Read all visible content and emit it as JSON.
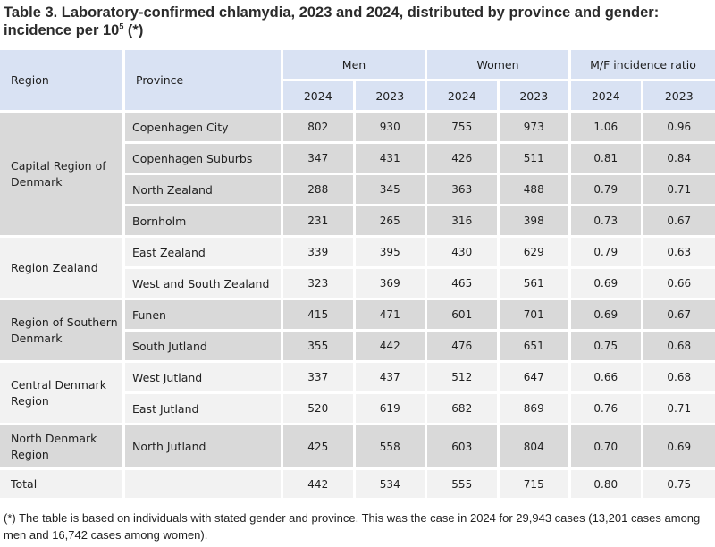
{
  "title": {
    "text": "Table 3. Laboratory-confirmed chlamydia, 2023 and 2024, distributed by province and gender: incidence per 10",
    "sup": "5",
    "suffix": " (*)"
  },
  "headers": {
    "region": "Region",
    "province": "Province",
    "groups": [
      "Men",
      "Women",
      "M/F incidence ratio"
    ],
    "years": [
      "2024",
      "2023",
      "2024",
      "2023",
      "2024",
      "2023"
    ]
  },
  "regions": [
    {
      "name": "Capital Region of Denmark",
      "rows": [
        {
          "province": "Copenhagen City",
          "values": [
            "802",
            "930",
            "755",
            "973",
            "1.06",
            "0.96"
          ]
        },
        {
          "province": "Copenhagen Suburbs",
          "values": [
            "347",
            "431",
            "426",
            "511",
            "0.81",
            "0.84"
          ]
        },
        {
          "province": "North Zealand",
          "values": [
            "288",
            "345",
            "363",
            "488",
            "0.79",
            "0.71"
          ]
        },
        {
          "province": "Bornholm",
          "values": [
            "231",
            "265",
            "316",
            "398",
            "0.73",
            "0.67"
          ]
        }
      ]
    },
    {
      "name": "Region Zealand",
      "rows": [
        {
          "province": "East Zealand",
          "values": [
            "339",
            "395",
            "430",
            "629",
            "0.79",
            "0.63"
          ]
        },
        {
          "province": "West and South Zealand",
          "values": [
            "323",
            "369",
            "465",
            "561",
            "0.69",
            "0.66"
          ]
        }
      ]
    },
    {
      "name": "Region of Southern Denmark",
      "rows": [
        {
          "province": "Funen",
          "values": [
            "415",
            "471",
            "601",
            "701",
            "0.69",
            "0.67"
          ]
        },
        {
          "province": "South Jutland",
          "values": [
            "355",
            "442",
            "476",
            "651",
            "0.75",
            "0.68"
          ]
        }
      ]
    },
    {
      "name": "Central Denmark Region",
      "rows": [
        {
          "province": "West Jutland",
          "values": [
            "337",
            "437",
            "512",
            "647",
            "0.66",
            "0.68"
          ]
        },
        {
          "province": "East Jutland",
          "values": [
            "520",
            "619",
            "682",
            "869",
            "0.76",
            "0.71"
          ]
        }
      ]
    },
    {
      "name": "North Denmark Region",
      "rows": [
        {
          "province": "North Jutland",
          "values": [
            "425",
            "558",
            "603",
            "804",
            "0.70",
            "0.69"
          ]
        }
      ]
    }
  ],
  "total": {
    "label": "Total",
    "province": "",
    "values": [
      "442",
      "534",
      "555",
      "715",
      "0.80",
      "0.75"
    ]
  },
  "footnote": "(*) The table is based on individuals with stated gender and province. This was the case in 2024 for 29,943 cases (13,201 cases among men and 16,742 cases among women).",
  "colors": {
    "header_bg": "#d9e2f3",
    "row_dark": "#d9d9d9",
    "row_light": "#f2f2f2"
  }
}
